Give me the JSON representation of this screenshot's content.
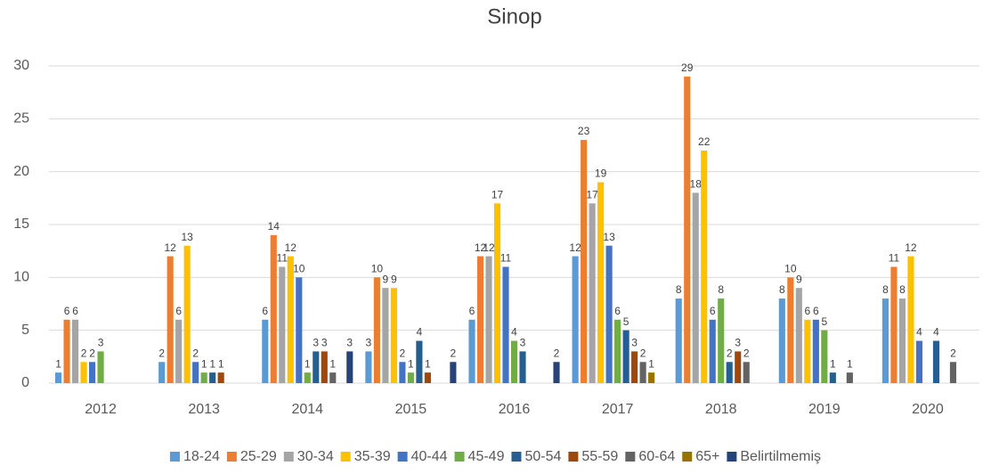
{
  "chart_data": {
    "type": "bar",
    "title": "Sinop",
    "categories": [
      "2012",
      "2013",
      "2014",
      "2015",
      "2016",
      "2017",
      "2018",
      "2019",
      "2020"
    ],
    "series": [
      {
        "name": "18-24",
        "color": "#5b9bd5",
        "values": [
          1,
          2,
          6,
          3,
          6,
          12,
          8,
          8,
          8
        ]
      },
      {
        "name": "25-29",
        "color": "#ed7d31",
        "values": [
          6,
          12,
          14,
          10,
          12,
          23,
          29,
          10,
          11
        ]
      },
      {
        "name": "30-34",
        "color": "#a5a5a5",
        "values": [
          6,
          6,
          11,
          9,
          12,
          17,
          18,
          9,
          8
        ]
      },
      {
        "name": "35-39",
        "color": "#ffc000",
        "values": [
          2,
          13,
          12,
          9,
          17,
          19,
          22,
          6,
          12
        ]
      },
      {
        "name": "40-44",
        "color": "#4472c4",
        "values": [
          2,
          2,
          10,
          2,
          11,
          13,
          6,
          6,
          4
        ]
      },
      {
        "name": "45-49",
        "color": "#70ad47",
        "values": [
          3,
          1,
          1,
          1,
          4,
          6,
          8,
          5,
          null
        ]
      },
      {
        "name": "50-54",
        "color": "#255e91",
        "values": [
          null,
          1,
          3,
          4,
          3,
          5,
          2,
          1,
          4
        ]
      },
      {
        "name": "55-59",
        "color": "#9e480e",
        "values": [
          null,
          1,
          3,
          1,
          null,
          3,
          3,
          null,
          null
        ]
      },
      {
        "name": "60-64",
        "color": "#636363",
        "values": [
          null,
          null,
          1,
          null,
          null,
          2,
          2,
          1,
          2
        ]
      },
      {
        "name": "65+",
        "color": "#997300",
        "values": [
          null,
          null,
          null,
          null,
          null,
          1,
          null,
          null,
          null
        ]
      },
      {
        "name": "Belirtilmemiş",
        "color": "#264478",
        "values": [
          null,
          null,
          3,
          2,
          2,
          null,
          null,
          null,
          null
        ]
      }
    ],
    "ylim": [
      0,
      30
    ],
    "yticks": [
      0,
      5,
      10,
      15,
      20,
      25,
      30
    ],
    "grid": true,
    "legend": "bottom"
  }
}
